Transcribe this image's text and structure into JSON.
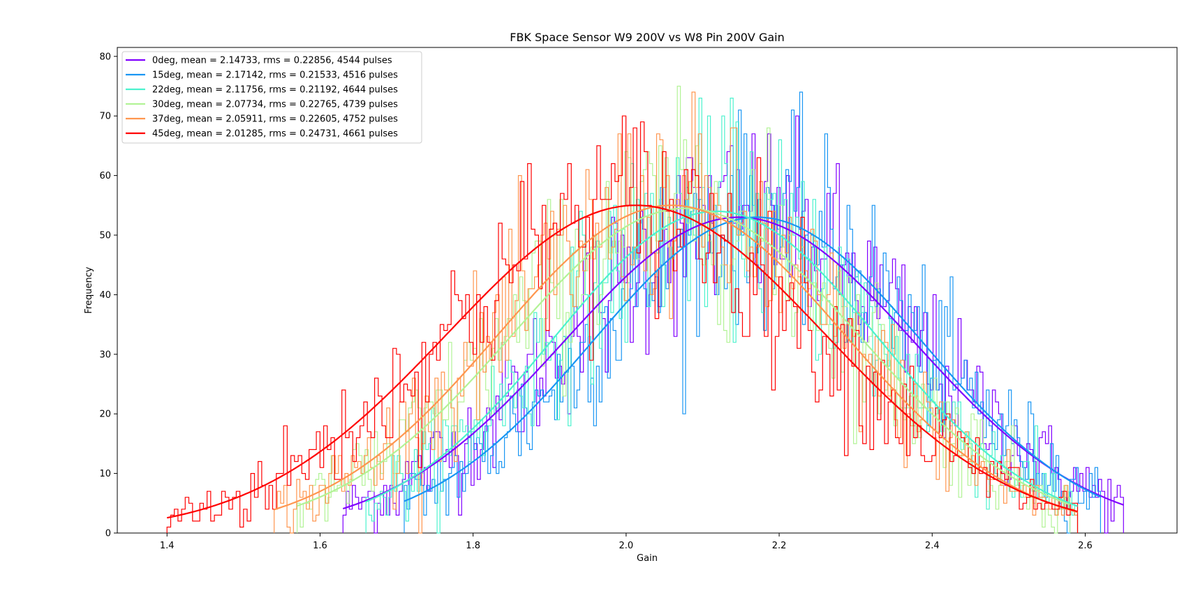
{
  "chart_data": {
    "type": "line",
    "title": "FBK Space Sensor W9 200V vs W8 Pin 200V Gain",
    "xlabel": "Gain",
    "ylabel": "Frequency",
    "xlim": [
      1.335,
      2.72
    ],
    "ylim": [
      0,
      81.5
    ],
    "xticks": [
      1.4,
      1.6,
      1.8,
      2.0,
      2.2,
      2.4,
      2.6
    ],
    "xtick_labels": [
      "1.4",
      "1.6",
      "1.8",
      "2.0",
      "2.2",
      "2.4",
      "2.6"
    ],
    "yticks": [
      0,
      10,
      20,
      30,
      40,
      50,
      60,
      70,
      80
    ],
    "ytick_labels": [
      "0",
      "10",
      "20",
      "30",
      "40",
      "50",
      "60",
      "70",
      "80"
    ],
    "grid": false,
    "legend_position": "top-left",
    "description": "Step histograms of gain for six angles, each overlaid with a Gaussian fit curve.",
    "series": [
      {
        "name": "0deg, mean = 2.14733, rms = 0.22856, 4544 pulses",
        "color": "#8000ff",
        "mean": 2.14733,
        "rms": 0.22856,
        "pulses": 4544,
        "fit_peak": 53.0,
        "x_range": [
          1.63,
          2.65
        ]
      },
      {
        "name": "15deg, mean = 2.17142, rms = 0.21533, 4516 pulses",
        "color": "#1996f3",
        "mean": 2.17142,
        "rms": 0.21533,
        "pulses": 4516,
        "fit_peak": 53.0,
        "x_range": [
          1.71,
          2.62
        ]
      },
      {
        "name": "22deg, mean = 2.11756, rms = 0.21192, 4644 pulses",
        "color": "#4cf2ce",
        "mean": 2.11756,
        "rms": 0.21192,
        "pulses": 4644,
        "fit_peak": 54.0,
        "x_range": [
          1.66,
          2.59
        ]
      },
      {
        "name": "30deg, mean = 2.07734, rms = 0.22765, 4739 pulses",
        "color": "#b2f396",
        "mean": 2.07734,
        "rms": 0.22765,
        "pulses": 4739,
        "fit_peak": 54.5,
        "x_range": [
          1.57,
          2.58
        ]
      },
      {
        "name": "37deg, mean = 2.05911, rms = 0.22605, 4752 pulses",
        "color": "#ff964f",
        "mean": 2.05911,
        "rms": 0.22605,
        "pulses": 4752,
        "fit_peak": 55.0,
        "x_range": [
          1.54,
          2.59
        ]
      },
      {
        "name": "45deg, mean = 2.01285, rms = 0.24731, 4661 pulses",
        "color": "#ff0000",
        "mean": 2.01285,
        "rms": 0.24731,
        "pulses": 4661,
        "fit_peak": 55.0,
        "x_range": [
          1.4,
          2.59
        ]
      }
    ]
  }
}
